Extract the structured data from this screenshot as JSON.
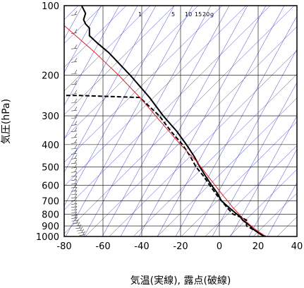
{
  "chart_data": {
    "type": "line",
    "title": "",
    "xlabel": "気温(実線), 露点(破線)",
    "ylabel": "気圧(hPa)",
    "xlim": [
      -80,
      40
    ],
    "ylim": [
      1000,
      100
    ],
    "yscale": "log",
    "x_ticks": [
      -80,
      -60,
      -40,
      -20,
      0,
      20,
      40
    ],
    "y_ticks": [
      100,
      200,
      300,
      400,
      500,
      600,
      700,
      800,
      900,
      1000
    ],
    "mixing_ratio_labels": [
      "1",
      "5",
      "10",
      "15",
      "20",
      "g"
    ],
    "grid": true,
    "colors": {
      "temperature": "#000000",
      "dewpoint": "#000000",
      "parcel": "#e02020",
      "adiabats": "#3a3ac8",
      "grid": "#000000"
    },
    "series": [
      {
        "role": "temperature",
        "style": "solid",
        "points": [
          [
            24,
            1000
          ],
          [
            21,
            975
          ],
          [
            19,
            950
          ],
          [
            17,
            925
          ],
          [
            16,
            900
          ],
          [
            14,
            875
          ],
          [
            12,
            850
          ],
          [
            11,
            825
          ],
          [
            9,
            800
          ],
          [
            7,
            775
          ],
          [
            5,
            750
          ],
          [
            3,
            725
          ],
          [
            1,
            700
          ],
          [
            -1,
            650
          ],
          [
            -4,
            600
          ],
          [
            -7,
            550
          ],
          [
            -10,
            500
          ],
          [
            -13,
            450
          ],
          [
            -17,
            400
          ],
          [
            -22,
            350
          ],
          [
            -29,
            300
          ],
          [
            -36,
            250
          ],
          [
            -46,
            200
          ],
          [
            -57,
            160
          ],
          [
            -63,
            145
          ],
          [
            -67,
            135
          ],
          [
            -67,
            125
          ],
          [
            -69,
            120
          ],
          [
            -70,
            115
          ],
          [
            -69,
            108
          ],
          [
            -71,
            100
          ]
        ]
      },
      {
        "role": "dewpoint",
        "style": "dashed",
        "points": [
          [
            23,
            1000
          ],
          [
            19,
            950
          ],
          [
            14,
            900
          ],
          [
            14,
            850
          ],
          [
            11,
            825
          ],
          [
            7,
            800
          ],
          [
            4,
            750
          ],
          [
            1,
            700
          ],
          [
            -2,
            650
          ],
          [
            -5,
            600
          ],
          [
            -8,
            550
          ],
          [
            -12,
            500
          ],
          [
            -15,
            450
          ],
          [
            -19,
            400
          ],
          [
            -25,
            350
          ],
          [
            -31,
            300
          ],
          [
            -41,
            250
          ],
          [
            -72,
            245
          ],
          [
            -79,
            245
          ]
        ]
      },
      {
        "role": "parcel",
        "style": "solid",
        "points": [
          [
            24,
            1000
          ],
          [
            18,
            925
          ],
          [
            13,
            850
          ],
          [
            7,
            750
          ],
          [
            1,
            650
          ],
          [
            -5,
            560
          ],
          [
            -12,
            470
          ],
          [
            -20,
            400
          ],
          [
            -30,
            320
          ],
          [
            -41,
            250
          ],
          [
            -52,
            200
          ],
          [
            -64,
            160
          ],
          [
            -80,
            122
          ]
        ]
      }
    ]
  }
}
